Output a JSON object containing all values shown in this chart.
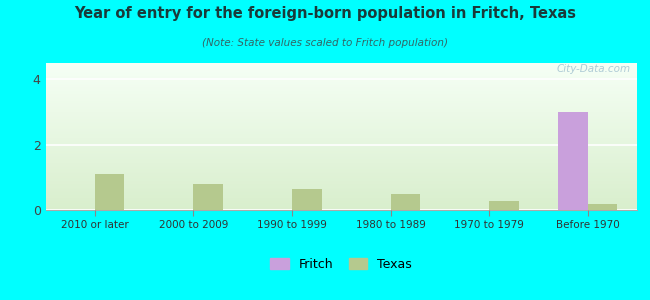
{
  "title": "Year of entry for the foreign-born population in Fritch, Texas",
  "subtitle": "(Note: State values scaled to Fritch population)",
  "categories": [
    "2010 or later",
    "2000 to 2009",
    "1990 to 1999",
    "1980 to 1989",
    "1970 to 1979",
    "Before 1970"
  ],
  "fritch_values": [
    0,
    0,
    0,
    0,
    0,
    3.0
  ],
  "texas_values": [
    1.1,
    0.8,
    0.65,
    0.5,
    0.28,
    0.18
  ],
  "fritch_color": "#c9a0dc",
  "texas_color": "#b5c98e",
  "background_color": "#00ffff",
  "gradient_top": "#e8f5e8",
  "gradient_bottom": "#f8fff8",
  "ylim": [
    0,
    4.5
  ],
  "yticks": [
    0,
    2,
    4
  ],
  "bar_width": 0.3,
  "watermark": "City-Data.com",
  "legend_fritch": "Fritch",
  "legend_texas": "Texas",
  "title_color": "#1a3a3a",
  "subtitle_color": "#336666"
}
